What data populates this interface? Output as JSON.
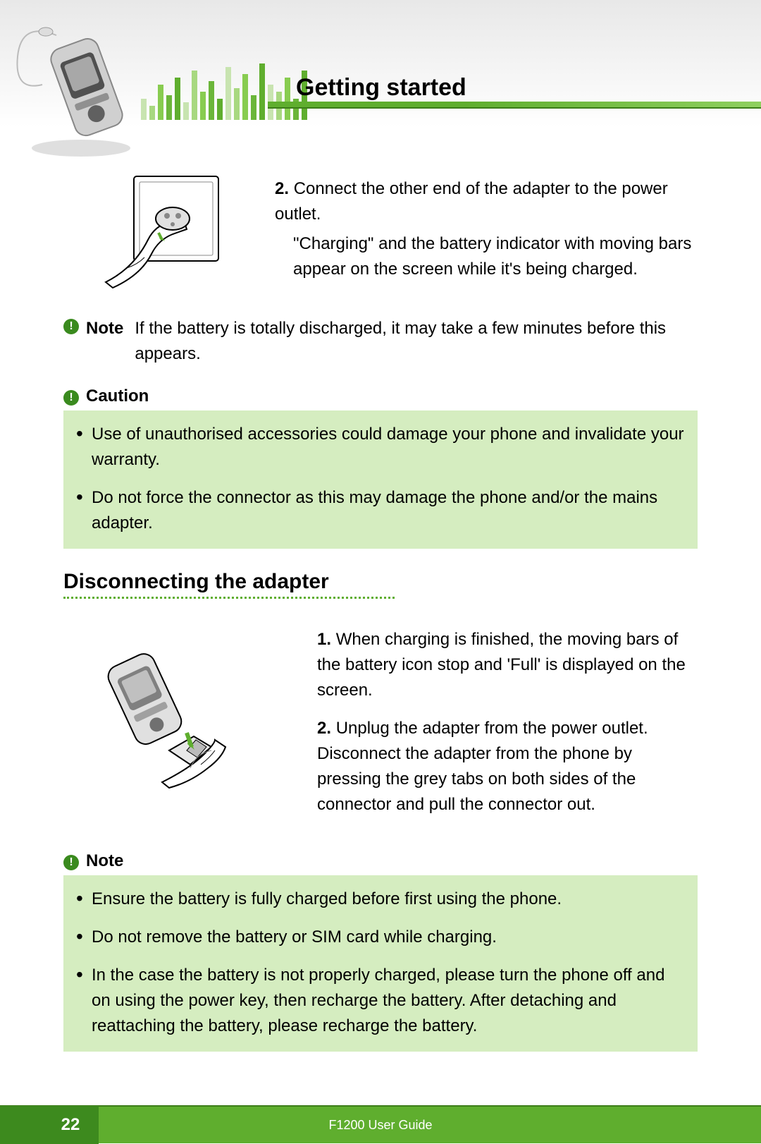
{
  "header": {
    "title": "Getting started",
    "eq_bar_heights": [
      30,
      20,
      50,
      35,
      60,
      25,
      70,
      40,
      55,
      30,
      75,
      45,
      65,
      35,
      80,
      50,
      40,
      60,
      30,
      70
    ],
    "eq_colors": [
      "#c8e4b0",
      "#a8d880",
      "#88cc50",
      "#6bb63a",
      "#5fae2e"
    ]
  },
  "step2": {
    "num": "2.",
    "line1": "Connect the other end of the adapter to the power outlet.",
    "line2": "\"Charging\" and the battery indicator with moving bars appear on the screen while it's being charged."
  },
  "note1": {
    "label": "Note",
    "text": "If the battery is totally discharged, it may take a few minutes before this appears."
  },
  "caution": {
    "label": "Caution",
    "items": [
      "Use of unauthorised accessories could damage your phone and invalidate your warranty.",
      "Do not force the connector as this may damage the phone and/or the mains adapter."
    ]
  },
  "subheading": "Disconnecting the adapter",
  "disc_steps": {
    "s1_num": "1.",
    "s1": "When charging is finished, the moving bars of the battery icon stop and 'Full' is displayed on the screen.",
    "s2_num": "2.",
    "s2": "Unplug the adapter from the power outlet. Disconnect the adapter from the phone by pressing the grey tabs on both sides of the connector and pull the connector out."
  },
  "note2": {
    "label": "Note",
    "items": [
      "Ensure the battery is fully charged before first using the phone.",
      "Do not remove the battery or SIM card while charging.",
      "In the case the battery is not properly charged, please turn the phone off and on using the power key, then recharge the battery. After detaching and reattaching the battery, please recharge the battery."
    ]
  },
  "footer": {
    "page": "22",
    "guide": "F1200 User Guide"
  },
  "colors": {
    "accent": "#5fae2e",
    "accent_dark": "#3d7d1a",
    "callout_bg": "#d5edc0"
  }
}
